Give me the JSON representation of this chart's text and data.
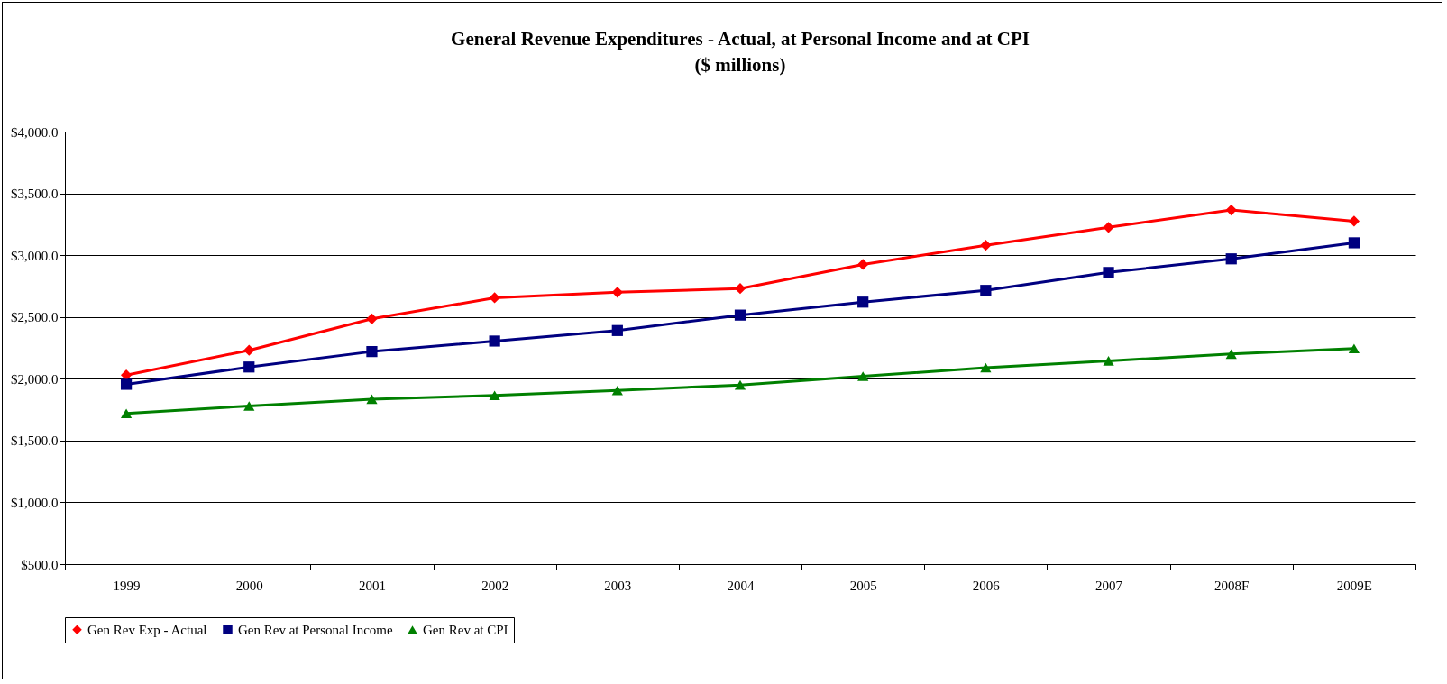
{
  "chart_data": {
    "type": "line",
    "title": "General Revenue Expenditures - Actual, at Personal Income and at CPI",
    "subtitle": "($ millions)",
    "categories": [
      "1999",
      "2000",
      "2001",
      "2002",
      "2003",
      "2004",
      "2005",
      "2006",
      "2007",
      "2008F",
      "2009E"
    ],
    "series": [
      {
        "name": "Gen Rev Exp - Actual",
        "color": "#ff0000",
        "marker": "diamond",
        "values": [
          2030,
          2230,
          2485,
          2655,
          2700,
          2730,
          2925,
          3080,
          3225,
          3365,
          3275
        ]
      },
      {
        "name": "Gen Rev at Personal Income",
        "color": "#000080",
        "marker": "square",
        "values": [
          1955,
          2095,
          2220,
          2305,
          2390,
          2515,
          2620,
          2715,
          2860,
          2970,
          3100
        ]
      },
      {
        "name": "Gen Rev at CPI",
        "color": "#008000",
        "marker": "triangle",
        "values": [
          1720,
          1780,
          1835,
          1865,
          1905,
          1950,
          2020,
          2090,
          2145,
          2200,
          2245
        ]
      }
    ],
    "ylim": [
      500,
      4000
    ],
    "yticks": [
      {
        "value": 500,
        "label": "$500.0"
      },
      {
        "value": 1000,
        "label": "$1,000.0"
      },
      {
        "value": 1500,
        "label": "$1,500.0"
      },
      {
        "value": 2000,
        "label": "$2,000.0"
      },
      {
        "value": 2500,
        "label": "$2,500.0"
      },
      {
        "value": 3000,
        "label": "$3,000.0"
      },
      {
        "value": 3500,
        "label": "$3,500.0"
      },
      {
        "value": 4000,
        "label": "$4,000.0"
      }
    ],
    "grid": "y",
    "legend": "bottom",
    "line_style": "solid"
  }
}
